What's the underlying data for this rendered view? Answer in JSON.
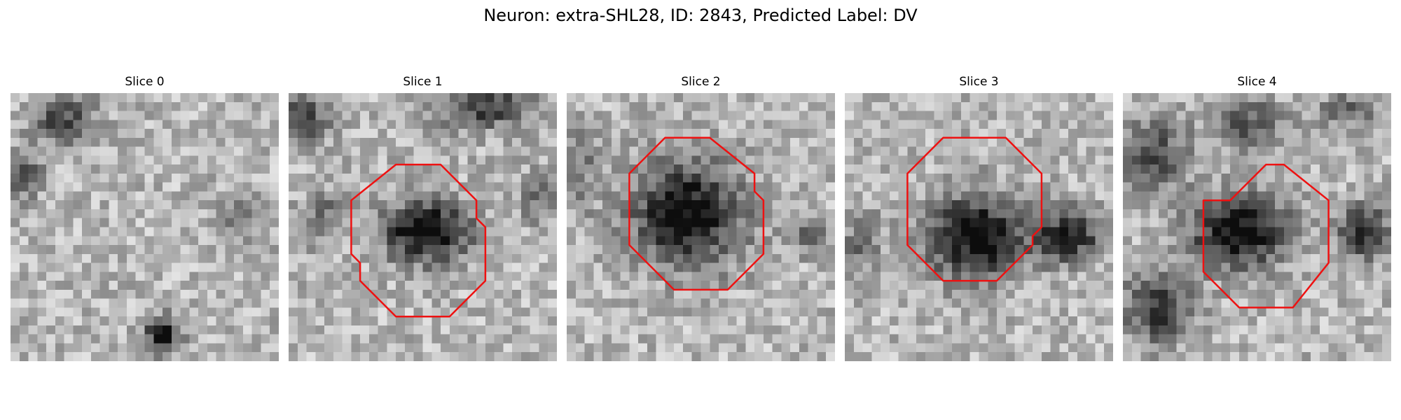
{
  "figure": {
    "title": "Neuron: extra-SHL28, ID: 2843, Predicted Label: DV"
  },
  "colors": {
    "outline": "#ee1111",
    "background": "#ffffff"
  },
  "slices": [
    {
      "title": "Slice 0",
      "has_outline": false
    },
    {
      "title": "Slice 1",
      "has_outline": true
    },
    {
      "title": "Slice 2",
      "has_outline": true
    },
    {
      "title": "Slice 3",
      "has_outline": true
    },
    {
      "title": "Slice 4",
      "has_outline": true
    }
  ]
}
